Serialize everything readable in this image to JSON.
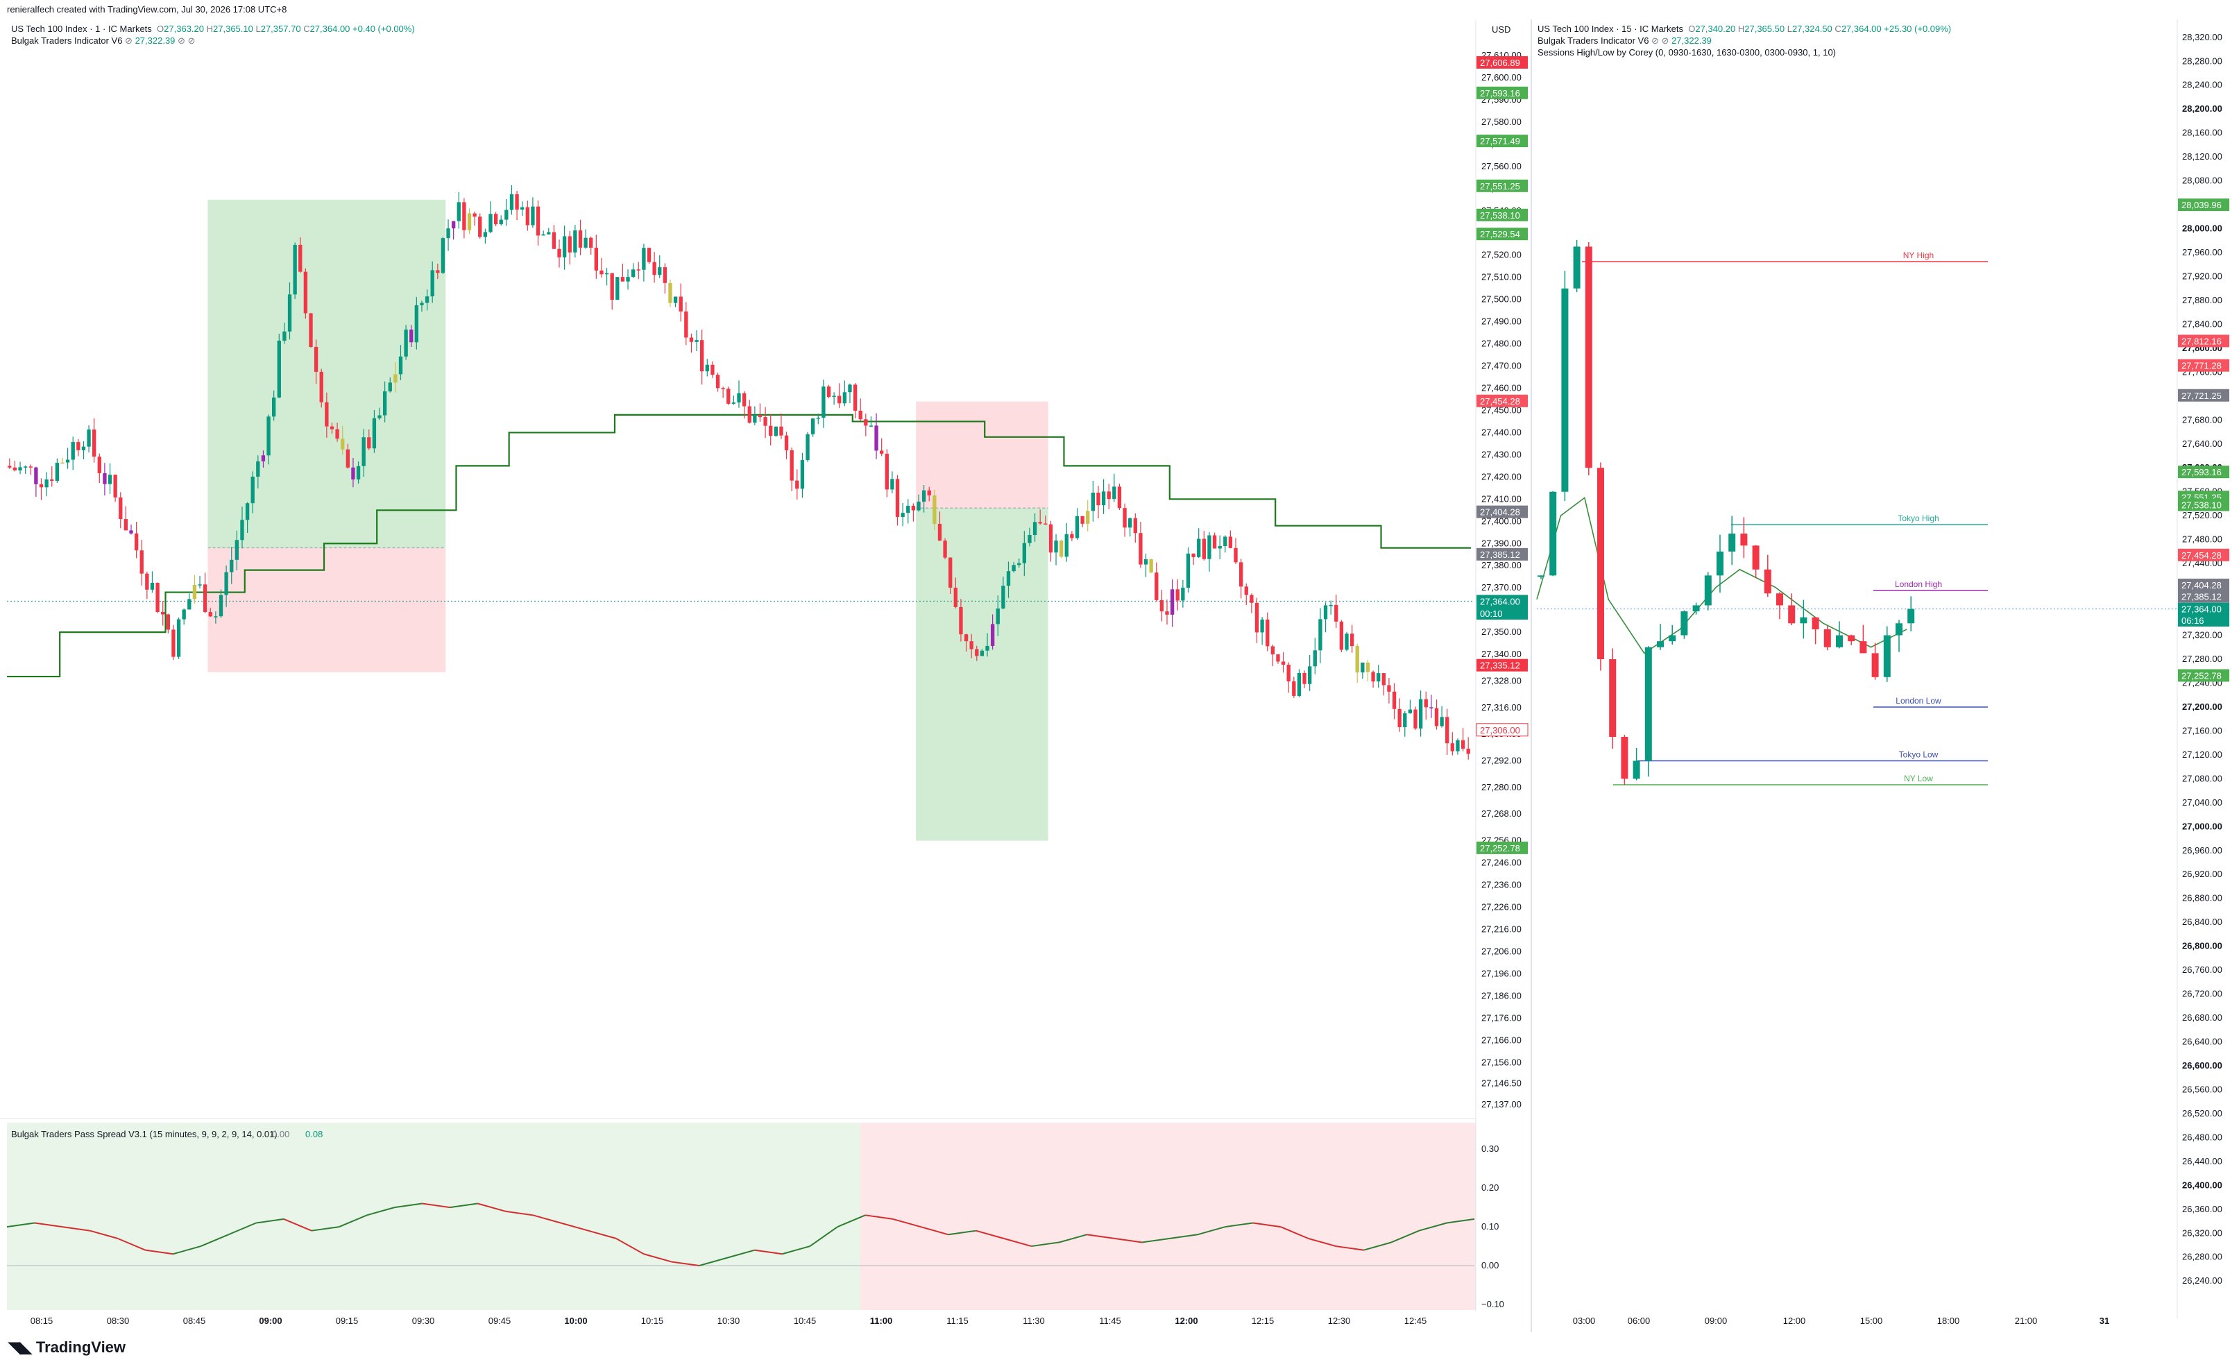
{
  "topbar": {
    "created_by": "renieralfech created with TradingView.com, Jul 30, 2026 17:08 UTC+8"
  },
  "left": {
    "symbol": "US Tech 100 Index · 1 · IC Markets",
    "ohlc": {
      "o": "27,363.20",
      "h": "27,365.10",
      "l": "27,357.70",
      "c": "27,364.00",
      "chg": "+0.40 (+0.00%)"
    },
    "indicator1": {
      "name": "Bulgak Traders Indicator V6",
      "value": "27,322.39"
    },
    "currency": "USD",
    "price_labels": [
      {
        "text": "27,606.89",
        "value": 27606.89,
        "color": "#f23645"
      },
      {
        "text": "27,593.16",
        "value": 27593.16,
        "color": "#4caf50"
      },
      {
        "text": "27,571.49",
        "value": 27571.49,
        "color": "#4caf50"
      },
      {
        "text": "27,551.25",
        "value": 27551.25,
        "color": "#4caf50"
      },
      {
        "text": "27,538.10",
        "value": 27538.1,
        "color": "#4caf50"
      },
      {
        "text": "27,529.54",
        "value": 27529.54,
        "color": "#4caf50"
      },
      {
        "text": "27,454.28",
        "value": 27454.28,
        "color": "#f7525f"
      },
      {
        "text": "27,404.28",
        "value": 27404.28,
        "color": "#787b86"
      },
      {
        "text": "27,385.12",
        "value": 27385.12,
        "color": "#787b86"
      },
      {
        "text": "27,364.00",
        "value": 27364.0,
        "color": "#089981"
      },
      {
        "text": "00:10",
        "value": 27358.5,
        "color": "#089981"
      },
      {
        "text": "27,335.12",
        "value": 27335.12,
        "color": "#f23645"
      },
      {
        "text": "27,306.00",
        "value": 27306.0,
        "color": "#ffffff"
      },
      {
        "text": "27,252.78",
        "value": 27252.78,
        "color": "#4caf50"
      }
    ],
    "x_ticks": [
      {
        "label": "08:15",
        "bold": false
      },
      {
        "label": "08:30",
        "bold": false
      },
      {
        "label": "08:45",
        "bold": false
      },
      {
        "label": "09:00",
        "bold": true
      },
      {
        "label": "09:15",
        "bold": false
      },
      {
        "label": "09:30",
        "bold": false
      },
      {
        "label": "09:45",
        "bold": false
      },
      {
        "label": "10:00",
        "bold": true
      },
      {
        "label": "10:15",
        "bold": false
      },
      {
        "label": "10:30",
        "bold": false
      },
      {
        "label": "10:45",
        "bold": false
      },
      {
        "label": "11:00",
        "bold": true
      },
      {
        "label": "11:15",
        "bold": false
      },
      {
        "label": "11:30",
        "bold": false
      },
      {
        "label": "11:45",
        "bold": false
      },
      {
        "label": "12:00",
        "bold": true
      },
      {
        "label": "12:15",
        "bold": false
      },
      {
        "label": "12:30",
        "bold": false
      },
      {
        "label": "12:45",
        "bold": false
      }
    ],
    "sub": {
      "name": "Bulgak Traders Pass Spread V3.1 (15 minutes, 9, 9, 2, 9, 14, 0.01)",
      "v1": "0.00",
      "v2": "0.08",
      "ticks": [
        "0.30",
        "0.20",
        "0.10",
        "0.00",
        "−0.10"
      ]
    }
  },
  "right": {
    "symbol": "US Tech 100 Index · 15 · IC Markets",
    "ohlc": {
      "o": "27,340.20",
      "h": "27,365.50",
      "l": "27,324.50",
      "c": "27,364.00",
      "chg": "+25.30 (+0.09%)"
    },
    "indicator1": {
      "name": "Bulgak Traders Indicator V6",
      "value": "27,322.39"
    },
    "indicator2": {
      "name": "Sessions High/Low by Corey (0, 0930-1630, 1630-0300, 0300-0930, 1, 10)"
    },
    "session_labels": [
      "NY High",
      "Tokyo High",
      "London High",
      "London Low",
      "Tokyo Low",
      "NY Low"
    ],
    "price_labels": [
      {
        "text": "28,039.96",
        "value": 28039.96,
        "color": "#4caf50"
      },
      {
        "text": "27,812.16",
        "value": 27812.16,
        "color": "#f7525f"
      },
      {
        "text": "27,771.28",
        "value": 27771.28,
        "color": "#f7525f"
      },
      {
        "text": "27,721.25",
        "value": 27721.25,
        "color": "#787b86"
      },
      {
        "text": "27,593.16",
        "value": 27593.16,
        "color": "#4caf50"
      },
      {
        "text": "27,551.25",
        "value": 27551.25,
        "color": "#4caf50"
      },
      {
        "text": "27,538.10",
        "value": 27538.1,
        "color": "#4caf50"
      },
      {
        "text": "27,454.28",
        "value": 27454.28,
        "color": "#f7525f"
      },
      {
        "text": "27,404.28",
        "value": 27404.28,
        "color": "#787b86"
      },
      {
        "text": "27,385.12",
        "value": 27385.12,
        "color": "#787b86"
      },
      {
        "text": "27,364.00",
        "value": 27364.0,
        "color": "#089981"
      },
      {
        "text": "06:16",
        "value": 27345.0,
        "color": "#089981"
      },
      {
        "text": "27,252.78",
        "value": 27252.78,
        "color": "#4caf50"
      }
    ],
    "x_ticks": [
      {
        "label": "03:00",
        "bold": false
      },
      {
        "label": "06:00",
        "bold": false
      },
      {
        "label": "09:00",
        "bold": false
      },
      {
        "label": "12:00",
        "bold": false
      },
      {
        "label": "15:00",
        "bold": false
      },
      {
        "label": "18:00",
        "bold": false
      },
      {
        "label": "21:00",
        "bold": false
      },
      {
        "label": "31",
        "bold": true
      }
    ]
  },
  "brand": "TradingView",
  "chart_data": [
    {
      "type": "candlestick",
      "title": "US Tech 100 Index · 1 · IC Markets",
      "ylim": [
        27137,
        27610
      ],
      "y_ticks": [
        27610,
        27600,
        27590,
        27580,
        27570,
        27560,
        27550,
        27540,
        27530,
        27520,
        27510,
        27500,
        27490,
        27480,
        27470,
        27460,
        27450,
        27440,
        27430,
        27420,
        27410,
        27400,
        27390,
        27380,
        27370,
        27360,
        27350,
        27340,
        27328,
        27316,
        27304,
        27292,
        27280,
        27268,
        27256,
        27246,
        27236,
        27226,
        27216,
        27206,
        27196,
        27186,
        27176,
        27166,
        27156,
        27146.5,
        27137
      ],
      "close_path": [
        [
          0,
          27425
        ],
        [
          8,
          27420
        ],
        [
          15,
          27440
        ],
        [
          22,
          27405
        ],
        [
          28,
          27370
        ],
        [
          32,
          27345
        ],
        [
          36,
          27372
        ],
        [
          40,
          27358
        ],
        [
          45,
          27400
        ],
        [
          50,
          27445
        ],
        [
          55,
          27520
        ],
        [
          60,
          27455
        ],
        [
          65,
          27420
        ],
        [
          70,
          27440
        ],
        [
          75,
          27475
        ],
        [
          80,
          27505
        ],
        [
          85,
          27540
        ],
        [
          90,
          27535
        ],
        [
          95,
          27543
        ],
        [
          100,
          27538
        ],
        [
          105,
          27520
        ],
        [
          110,
          27530
        ],
        [
          115,
          27505
        ],
        [
          120,
          27520
        ],
        [
          125,
          27505
        ],
        [
          130,
          27480
        ],
        [
          135,
          27465
        ],
        [
          140,
          27450
        ],
        [
          145,
          27440
        ],
        [
          150,
          27420
        ],
        [
          155,
          27460
        ],
        [
          160,
          27455
        ],
        [
          165,
          27435
        ],
        [
          170,
          27400
        ],
        [
          175,
          27410
        ],
        [
          180,
          27355
        ],
        [
          185,
          27340
        ],
        [
          190,
          27375
        ],
        [
          195,
          27400
        ],
        [
          200,
          27385
        ],
        [
          205,
          27405
        ],
        [
          210,
          27420
        ],
        [
          215,
          27380
        ],
        [
          220,
          27360
        ],
        [
          225,
          27385
        ],
        [
          230,
          27392
        ],
        [
          235,
          27365
        ],
        [
          240,
          27340
        ],
        [
          245,
          27325
        ],
        [
          250,
          27360
        ],
        [
          255,
          27340
        ],
        [
          260,
          27325
        ],
        [
          265,
          27310
        ],
        [
          270,
          27315
        ],
        [
          275,
          27300
        ]
      ],
      "indicator_step_line": [
        [
          0,
          27330
        ],
        [
          10,
          27330
        ],
        [
          10,
          27350
        ],
        [
          30,
          27350
        ],
        [
          30,
          27368
        ],
        [
          45,
          27368
        ],
        [
          45,
          27378
        ],
        [
          60,
          27378
        ],
        [
          60,
          27390
        ],
        [
          70,
          27390
        ],
        [
          70,
          27405
        ],
        [
          85,
          27405
        ],
        [
          85,
          27425
        ],
        [
          95,
          27425
        ],
        [
          95,
          27440
        ],
        [
          115,
          27440
        ],
        [
          115,
          27448
        ],
        [
          160,
          27448
        ],
        [
          160,
          27445
        ],
        [
          185,
          27445
        ],
        [
          185,
          27438
        ],
        [
          200,
          27438
        ],
        [
          200,
          27425
        ],
        [
          220,
          27425
        ],
        [
          220,
          27410
        ],
        [
          240,
          27410
        ],
        [
          240,
          27398
        ],
        [
          260,
          27398
        ],
        [
          260,
          27388
        ],
        [
          277,
          27388
        ]
      ],
      "positions": [
        {
          "start": 38,
          "end": 83,
          "entry": 27388,
          "target": 27545,
          "stop": 27332,
          "dir": "long"
        },
        {
          "start": 172,
          "end": 197,
          "entry": 27406,
          "target": 27256,
          "stop": 27454,
          "dir": "short"
        }
      ]
    },
    {
      "type": "line",
      "title": "Bulgak Traders Pass Spread V3.1",
      "ylim": [
        -0.1,
        0.32
      ],
      "series": [
        {
          "values": [
            0.1,
            0.11,
            0.1,
            0.09,
            0.07,
            0.04,
            0.03,
            0.05,
            0.08,
            0.11,
            0.12,
            0.09,
            0.1,
            0.13,
            0.15,
            0.16,
            0.15,
            0.16,
            0.14,
            0.13,
            0.11,
            0.09,
            0.07,
            0.03,
            0.01,
            0.0,
            0.02,
            0.04,
            0.03,
            0.05,
            0.1,
            0.13,
            0.12,
            0.1,
            0.08,
            0.09,
            0.07,
            0.05,
            0.06,
            0.08,
            0.07,
            0.06,
            0.07,
            0.08,
            0.1,
            0.11,
            0.1,
            0.07,
            0.05,
            0.04,
            0.06,
            0.09,
            0.11,
            0.12
          ]
        }
      ]
    },
    {
      "type": "candlestick",
      "title": "US Tech 100 Index · 15 · IC Markets",
      "ylim": [
        26224,
        28336
      ],
      "close_path": [
        [
          0,
          27420
        ],
        [
          1,
          27560
        ],
        [
          2,
          27900
        ],
        [
          3,
          27970
        ],
        [
          4,
          27600
        ],
        [
          5,
          27280
        ],
        [
          6,
          27150
        ],
        [
          7,
          27080
        ],
        [
          8,
          27110
        ],
        [
          9,
          27300
        ],
        [
          10,
          27310
        ],
        [
          11,
          27320
        ],
        [
          12,
          27360
        ],
        [
          13,
          27370
        ],
        [
          14,
          27420
        ],
        [
          15,
          27460
        ],
        [
          16,
          27490
        ],
        [
          17,
          27470
        ],
        [
          18,
          27430
        ],
        [
          19,
          27390
        ],
        [
          20,
          27370
        ],
        [
          21,
          27340
        ],
        [
          22,
          27350
        ],
        [
          23,
          27330
        ],
        [
          24,
          27300
        ],
        [
          25,
          27320
        ],
        [
          26,
          27310
        ],
        [
          27,
          27290
        ],
        [
          28,
          27250
        ],
        [
          29,
          27320
        ],
        [
          30,
          27340
        ],
        [
          31,
          27364
        ]
      ],
      "indicator_curve": [
        [
          0,
          27380
        ],
        [
          2,
          27520
        ],
        [
          4,
          27550
        ],
        [
          6,
          27380
        ],
        [
          9,
          27290
        ],
        [
          12,
          27330
        ],
        [
          15,
          27400
        ],
        [
          17,
          27430
        ],
        [
          20,
          27400
        ],
        [
          24,
          27340
        ],
        [
          28,
          27300
        ],
        [
          31,
          27330
        ]
      ]
    }
  ]
}
